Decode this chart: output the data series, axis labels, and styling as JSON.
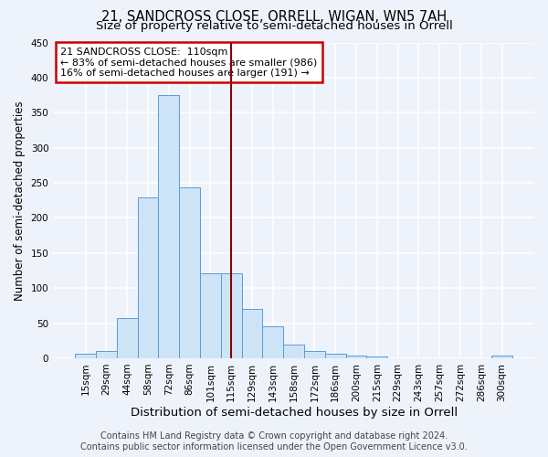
{
  "title1": "21, SANDCROSS CLOSE, ORRELL, WIGAN, WN5 7AH",
  "title2": "Size of property relative to semi-detached houses in Orrell",
  "xlabel": "Distribution of semi-detached houses by size in Orrell",
  "ylabel": "Number of semi-detached properties",
  "bar_labels": [
    "15sqm",
    "29sqm",
    "44sqm",
    "58sqm",
    "72sqm",
    "86sqm",
    "101sqm",
    "115sqm",
    "129sqm",
    "143sqm",
    "158sqm",
    "172sqm",
    "186sqm",
    "200sqm",
    "215sqm",
    "229sqm",
    "243sqm",
    "257sqm",
    "272sqm",
    "286sqm",
    "300sqm"
  ],
  "bar_values": [
    7,
    10,
    57,
    229,
    375,
    243,
    121,
    121,
    70,
    45,
    20,
    10,
    7,
    4,
    2,
    0,
    0,
    0,
    0,
    0,
    4
  ],
  "bar_color": "#cde4f7",
  "bar_edge_color": "#5b9bd5",
  "vline_color": "#8b0000",
  "vline_index": 7.5,
  "ylim": [
    0,
    450
  ],
  "yticks": [
    0,
    50,
    100,
    150,
    200,
    250,
    300,
    350,
    400,
    450
  ],
  "annotation_line1": "21 SANDCROSS CLOSE:  110sqm",
  "annotation_line2": "← 83% of semi-detached houses are smaller (986)",
  "annotation_line3": "16% of semi-detached houses are larger (191) →",
  "annotation_box_color": "#ffffff",
  "annotation_box_edge": "#cc0000",
  "footer1": "Contains HM Land Registry data © Crown copyright and database right 2024.",
  "footer2": "Contains public sector information licensed under the Open Government Licence v3.0.",
  "background_color": "#eef3fb",
  "grid_color": "#ffffff",
  "title1_fontsize": 10.5,
  "title2_fontsize": 9.5,
  "xlabel_fontsize": 9.5,
  "ylabel_fontsize": 8.5,
  "tick_fontsize": 7.5,
  "ann_fontsize": 8.0,
  "footer_fontsize": 7.0
}
